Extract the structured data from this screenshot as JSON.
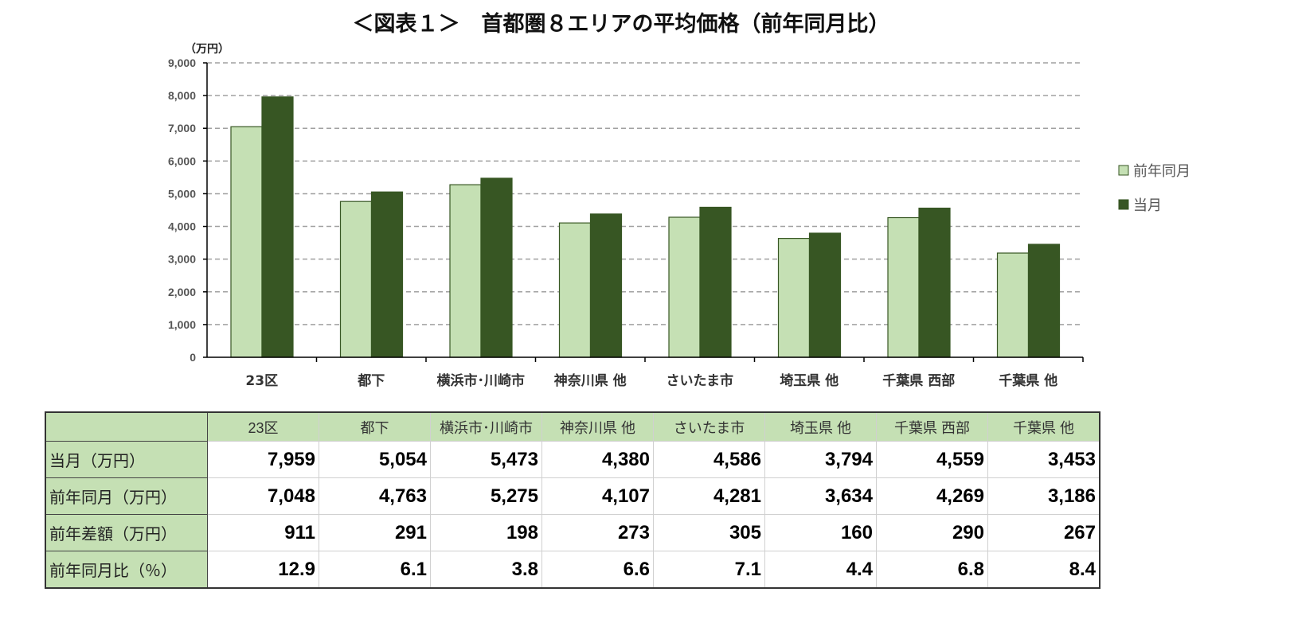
{
  "title": "＜図表１＞　首都圏８エリアの平均価格（前年同月比）",
  "chart_data": {
    "type": "bar",
    "ylabel": "（万円）",
    "ylim": [
      0,
      9000
    ],
    "yticks": [
      "0",
      "1,000",
      "2,000",
      "3,000",
      "4,000",
      "5,000",
      "6,000",
      "7,000",
      "8,000",
      "9,000"
    ],
    "grid": true,
    "legend_position": "right",
    "categories": [
      "23区",
      "都下",
      "横浜市･川崎市",
      "神奈川県 他",
      "さいたま市",
      "埼玉県 他",
      "千葉県 西部",
      "千葉県 他"
    ],
    "series": [
      {
        "name": "前年同月",
        "color": "#c5e0b4",
        "values": [
          7048,
          4763,
          5275,
          4107,
          4281,
          3634,
          4269,
          3186
        ]
      },
      {
        "name": "当月",
        "color": "#375623",
        "values": [
          7959,
          5054,
          5473,
          4380,
          4586,
          3794,
          4559,
          3453
        ]
      }
    ]
  },
  "table": {
    "headers": [
      "23区",
      "都下",
      "横浜市･川崎市",
      "神奈川県 他",
      "さいたま市",
      "埼玉県 他",
      "千葉県 西部",
      "千葉県 他"
    ],
    "rows": [
      {
        "label": "当月（万円）",
        "values": [
          "7,959",
          "5,054",
          "5,473",
          "4,380",
          "4,586",
          "3,794",
          "4,559",
          "3,453"
        ]
      },
      {
        "label": "前年同月（万円）",
        "values": [
          "7,048",
          "4,763",
          "5,275",
          "4,107",
          "4,281",
          "3,634",
          "4,269",
          "3,186"
        ]
      },
      {
        "label": "前年差額（万円）",
        "values": [
          "911",
          "291",
          "198",
          "273",
          "305",
          "160",
          "290",
          "267"
        ]
      },
      {
        "label": "前年同月比（％）",
        "values": [
          "12.9",
          "6.1",
          "3.8",
          "6.6",
          "7.1",
          "4.4",
          "6.8",
          "8.4"
        ]
      }
    ]
  }
}
